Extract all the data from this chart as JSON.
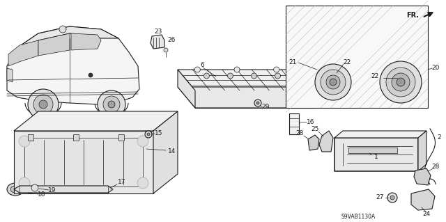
{
  "bg_color": "#ffffff",
  "line_color": "#1a1a1a",
  "fig_width": 6.4,
  "fig_height": 3.19,
  "dpi": 100,
  "diagram_code": "S9VAB1130A"
}
